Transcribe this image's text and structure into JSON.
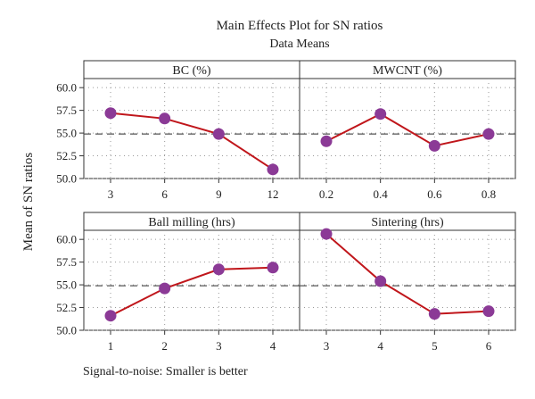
{
  "chart_data": {
    "type": "line",
    "title": "Main Effects Plot for SN ratios",
    "subtitle": "Data Means",
    "ylabel": "Mean of SN ratios",
    "footnote": "Signal-to-noise: Smaller is better",
    "ylim": [
      50.0,
      61.0
    ],
    "yticks": [
      "50.0",
      "52.5",
      "55.0",
      "57.5",
      "60.0"
    ],
    "reference_mean": 54.9,
    "grid": "dotted",
    "line_color": "#c0161b",
    "marker_color": "#8b3a96",
    "reference_line_color": "#555555",
    "panels": [
      {
        "title": "BC (%)",
        "categories": [
          "3",
          "6",
          "9",
          "12"
        ],
        "values": [
          57.2,
          56.6,
          54.9,
          51.0
        ]
      },
      {
        "title": "MWCNT (%)",
        "categories": [
          "0.2",
          "0.4",
          "0.6",
          "0.8"
        ],
        "values": [
          54.1,
          57.1,
          53.6,
          54.9
        ]
      },
      {
        "title": "Ball milling (hrs)",
        "categories": [
          "1",
          "2",
          "3",
          "4"
        ],
        "values": [
          51.6,
          54.6,
          56.7,
          56.9
        ]
      },
      {
        "title": "Sintering (hrs)",
        "categories": [
          "3",
          "4",
          "5",
          "6"
        ],
        "values": [
          60.6,
          55.4,
          51.8,
          52.1
        ]
      }
    ]
  }
}
